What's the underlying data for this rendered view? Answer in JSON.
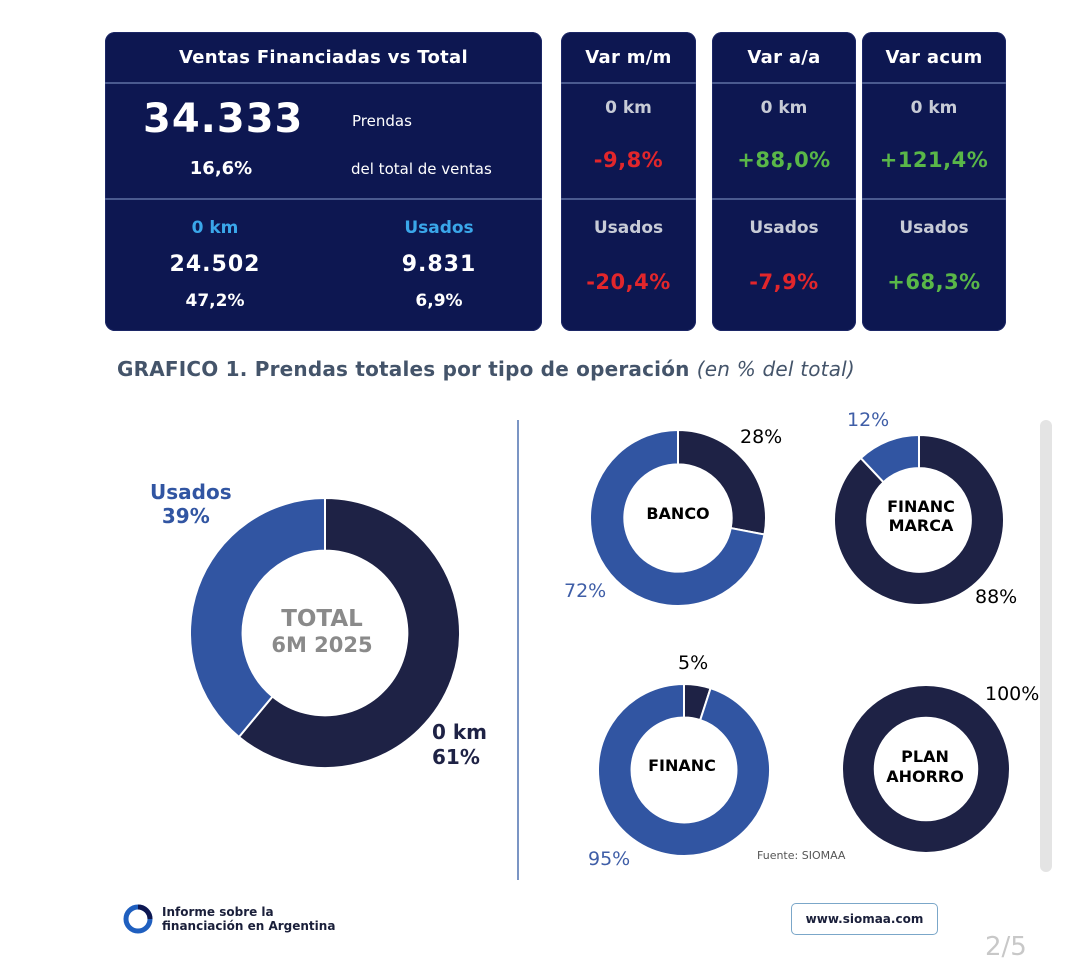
{
  "summary": {
    "title": "Ventas Financiadas vs Total",
    "total_value": "34.333",
    "total_unit": "Prendas",
    "total_share": "16,6%",
    "total_share_label": "del total de ventas",
    "okm_label": "0 km",
    "okm_value": "24.502",
    "okm_share": "47,2%",
    "used_label": "Usados",
    "used_value": "9.831",
    "used_share": "6,9%"
  },
  "variations": [
    {
      "header": "Var m/m",
      "okm_label": "0 km",
      "okm_value": "-9,8%",
      "okm_sign": "neg",
      "used_label": "Usados",
      "used_value": "-20,4%",
      "used_sign": "neg"
    },
    {
      "header": "Var a/a",
      "okm_label": "0 km",
      "okm_value": "+88,0%",
      "okm_sign": "pos",
      "used_label": "Usados",
      "used_value": "-7,9%",
      "used_sign": "neg"
    },
    {
      "header": "Var acum",
      "okm_label": "0 km",
      "okm_value": "+121,4%",
      "okm_sign": "pos",
      "used_label": "Usados",
      "used_value": "+68,3%",
      "used_sign": "pos"
    }
  ],
  "graph": {
    "title": "GRAFICO 1. Prendas totales por tipo de operación",
    "subtitle": "(en % del total)",
    "source": "Fuente: SIOMAA"
  },
  "colors": {
    "navy": "#1e2245",
    "blue": "#3155a2",
    "panel": "#0d1751",
    "neg": "#e2262b",
    "pos": "#59b748"
  },
  "chart_data": [
    {
      "type": "pie",
      "donut": true,
      "center_label": [
        "TOTAL",
        "6M 2025"
      ],
      "slices": [
        {
          "label": "0 km",
          "value": 61,
          "display": "61%",
          "color": "#1e2245"
        },
        {
          "label": "Usados",
          "value": 39,
          "display": "39%",
          "color": "#3155a2"
        }
      ]
    },
    {
      "type": "pie",
      "donut": true,
      "center_label": [
        "BANCO"
      ],
      "slices": [
        {
          "label": "",
          "value": 28,
          "display": "28%",
          "color": "#1e2245"
        },
        {
          "label": "",
          "value": 72,
          "display": "72%",
          "color": "#3155a2"
        }
      ]
    },
    {
      "type": "pie",
      "donut": true,
      "center_label": [
        "FINANC",
        "MARCA"
      ],
      "slices": [
        {
          "label": "",
          "value": 88,
          "display": "88%",
          "color": "#1e2245"
        },
        {
          "label": "",
          "value": 12,
          "display": "12%",
          "color": "#3155a2"
        }
      ]
    },
    {
      "type": "pie",
      "donut": true,
      "center_label": [
        "FINANC"
      ],
      "slices": [
        {
          "label": "",
          "value": 5,
          "display": "5%",
          "color": "#1e2245"
        },
        {
          "label": "",
          "value": 95,
          "display": "95%",
          "color": "#3155a2"
        }
      ]
    },
    {
      "type": "pie",
      "donut": true,
      "center_label": [
        "PLAN",
        "AHORRO"
      ],
      "slices": [
        {
          "label": "",
          "value": 100,
          "display": "100%",
          "color": "#1e2245"
        }
      ]
    }
  ],
  "footer": {
    "brand_line1": "Informe sobre la",
    "brand_line2": "financiación en Argentina",
    "website": "www.siomaa.com",
    "page": "2/5"
  }
}
